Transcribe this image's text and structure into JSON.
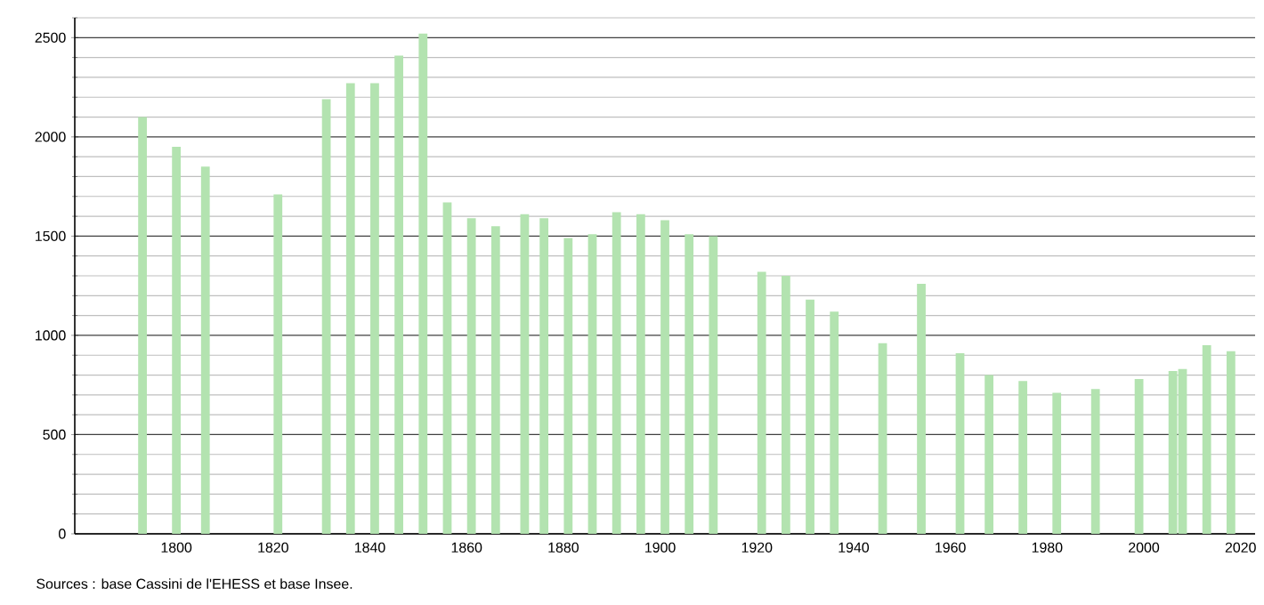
{
  "chart_data": {
    "type": "bar",
    "color": "#b3e3b0",
    "x": [
      1793,
      1800,
      1806,
      1821,
      1831,
      1836,
      1841,
      1846,
      1851,
      1856,
      1861,
      1866,
      1872,
      1876,
      1881,
      1886,
      1891,
      1896,
      1901,
      1906,
      1911,
      1921,
      1926,
      1931,
      1936,
      1946,
      1954,
      1962,
      1968,
      1975,
      1982,
      1990,
      1999,
      2006,
      2008,
      2013,
      2018
    ],
    "values": [
      2100,
      1950,
      1850,
      1710,
      2190,
      2270,
      2270,
      2410,
      2520,
      1670,
      1590,
      1550,
      1610,
      1590,
      1490,
      1510,
      1620,
      1610,
      1580,
      1510,
      1500,
      1320,
      1300,
      1180,
      1120,
      960,
      1260,
      910,
      800,
      770,
      710,
      730,
      780,
      820,
      830,
      950,
      920
    ],
    "xlim": [
      1779,
      2023
    ],
    "xticks": [
      1800,
      1820,
      1840,
      1860,
      1880,
      1900,
      1920,
      1940,
      1960,
      1980,
      2000,
      2020
    ],
    "ylim": [
      0,
      2600
    ],
    "yticks": [
      0,
      {
        "value": 100,
        "label": null
      },
      {
        "value": 200,
        "label": null
      },
      {
        "value": 300,
        "label": null
      },
      {
        "value": 400,
        "label": null
      },
      500,
      {
        "value": 600,
        "label": null
      },
      {
        "value": 700,
        "label": null
      },
      {
        "value": 800,
        "label": null
      },
      {
        "value": 900,
        "label": null
      },
      1000,
      {
        "value": 1100,
        "label": null
      },
      {
        "value": 1200,
        "label": null
      },
      {
        "value": 1300,
        "label": null
      },
      {
        "value": 1400,
        "label": null
      },
      1500,
      {
        "value": 1600,
        "label": null
      },
      {
        "value": 1700,
        "label": null
      },
      {
        "value": 1800,
        "label": null
      },
      {
        "value": 1900,
        "label": null
      },
      2000,
      {
        "value": 2100,
        "label": null
      },
      {
        "value": 2200,
        "label": null
      },
      {
        "value": 2300,
        "label": null
      },
      {
        "value": 2400,
        "label": null
      },
      2500,
      {
        "value": 2600,
        "label": null
      }
    ],
    "grid": "y",
    "annotations": [
      "Sources : base Cassini de l'EHESS et base Insee."
    ]
  }
}
